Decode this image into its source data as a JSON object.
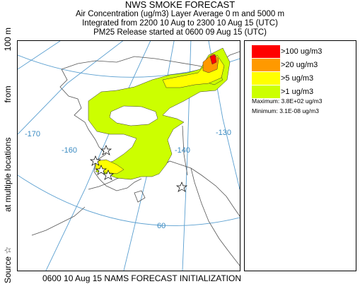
{
  "header": {
    "title": "NWS SMOKE FORECAST",
    "line1": "Air Concentration (ug/m3) Layer Average    0 m and  5000 m",
    "line2": "Integrated from 2200 10 Aug to 2300 10 Aug 15 (UTC)",
    "line3": "PM25 Release started at 0600 09 Aug 15 (UTC)"
  },
  "side_label": {
    "part1": "Source ☆",
    "part2": "at multiple locations",
    "part3": "from",
    "part4": "100 m"
  },
  "map": {
    "graticule_labels": {
      "lon_170": "-170",
      "lon_160": "-160",
      "lon_140": "-140",
      "lon_130": "-130",
      "lat_60": "60"
    },
    "colors": {
      "land_outline": "#555555",
      "graticule": "#5a9fd0",
      "smoke_1": "#ccff00",
      "smoke_5": "#ffff00",
      "smoke_20": "#ff9900",
      "smoke_100": "#ff0000"
    }
  },
  "legend": {
    "items": [
      {
        "label": ">100 ug/m3",
        "color": "#ff0000"
      },
      {
        "label": ">20 ug/m3",
        "color": "#ff9900"
      },
      {
        "label": ">5 ug/m3",
        "color": "#ffff00"
      },
      {
        "label": ">1 ug/m3",
        "color": "#ccff00"
      }
    ],
    "maximum": "Maximum: 3.8E+02 ug/m3",
    "minimum": "Minimum: 3.1E-08 ug/m3"
  },
  "footer": {
    "text": "0600 10 Aug 15 NAMS FORECAST INITIALIZATION"
  }
}
